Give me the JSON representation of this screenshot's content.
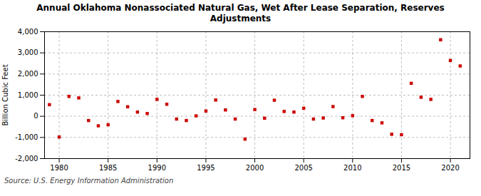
{
  "chart_data": {
    "type": "scatter",
    "title": "Annual Oklahoma Nonassociated Natural Gas, Wet After Lease Separation, Reserves\nAdjustments",
    "ylabel": "Billion Cubic Feet",
    "source": "Source: U.S. Energy Information Administration",
    "x": [
      1979,
      1980,
      1981,
      1982,
      1983,
      1984,
      1985,
      1986,
      1987,
      1988,
      1989,
      1990,
      1991,
      1992,
      1993,
      1994,
      1995,
      1996,
      1997,
      1998,
      1999,
      2000,
      2001,
      2002,
      2003,
      2004,
      2005,
      2006,
      2007,
      2008,
      2009,
      2010,
      2011,
      2012,
      2013,
      2014,
      2015,
      2016,
      2017,
      2018,
      2019,
      2020,
      2021
    ],
    "values": [
      550,
      -980,
      940,
      870,
      -200,
      -450,
      -400,
      700,
      450,
      200,
      130,
      800,
      570,
      -130,
      -200,
      20,
      250,
      770,
      300,
      -130,
      -1080,
      320,
      -90,
      760,
      230,
      200,
      380,
      -130,
      -80,
      460,
      -70,
      30,
      940,
      -200,
      -310,
      -850,
      -870,
      1560,
      900,
      800,
      3620,
      2640,
      2380
    ],
    "color": "#cc0000",
    "marker": "square",
    "xlim": [
      1978.5,
      2022
    ],
    "xticks": [
      1980,
      1985,
      1990,
      1995,
      2000,
      2005,
      2010,
      2015,
      2020
    ],
    "ylim": [
      -2000,
      4000
    ],
    "yticks": [
      {
        "value": -2000,
        "label": "-2,000"
      },
      {
        "value": -1000,
        "label": "-1,000"
      },
      0,
      {
        "value": 1000,
        "label": "1,000"
      },
      {
        "value": 2000,
        "label": "2,000"
      },
      {
        "value": 3000,
        "label": "3,000"
      },
      {
        "value": 4000,
        "label": "4,000"
      }
    ],
    "grid": true
  }
}
